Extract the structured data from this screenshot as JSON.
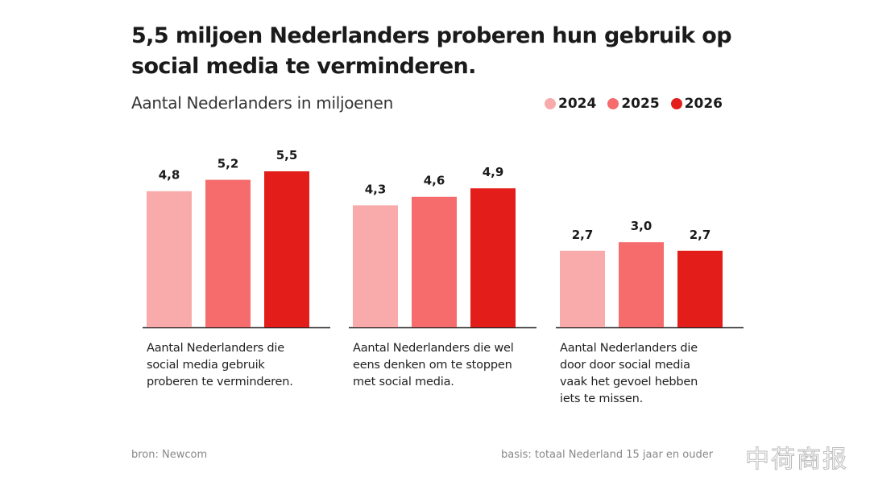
{
  "chart_data": {
    "type": "bar",
    "title": "5,5 miljoen Nederlanders proberen hun gebruik op social media te verminderen.",
    "subtitle": "Aantal Nederlanders in miljoenen",
    "legend_position": "top-right",
    "grid": false,
    "ylim": [
      0,
      5.5
    ],
    "series": [
      {
        "name": "2024",
        "color": "#f9abab",
        "values": [
          4.8,
          4.3,
          2.7
        ],
        "labels": [
          "4,8",
          "4,3",
          "2,7"
        ]
      },
      {
        "name": "2025",
        "color": "#f66b6b",
        "values": [
          5.2,
          4.6,
          3.0
        ],
        "labels": [
          "5,2",
          "4,6",
          "3,0"
        ]
      },
      {
        "name": "2026",
        "color": "#e31e1a",
        "values": [
          5.5,
          4.9,
          2.7
        ],
        "labels": [
          "5,5",
          "4,9",
          "2,7"
        ]
      }
    ],
    "categories": [
      "Aantal Nederlanders die social media gebruik proberen te verminderen.",
      "Aantal Nederlanders die wel eens denken om te stoppen met social media.",
      "Aantal Nederlanders die door door social media vaak het gevoel hebben iets te missen."
    ]
  },
  "footer": {
    "source": "bron: Newcom",
    "basis": "basis: totaal Nederland 15 jaar en ouder"
  },
  "watermark": "中荷商报"
}
